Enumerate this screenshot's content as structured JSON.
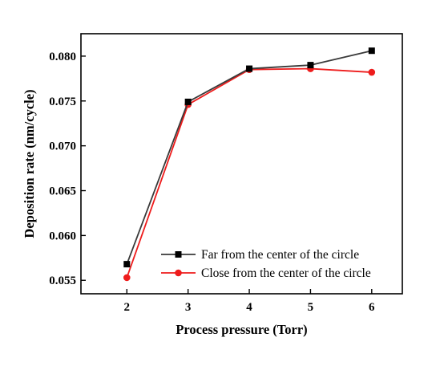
{
  "chart_data": {
    "type": "line",
    "title": "",
    "xlabel": "Process pressure (Torr)",
    "ylabel": "Deposition rate (nm/cycle)",
    "x": [
      2,
      3,
      4,
      5,
      6
    ],
    "xlim": [
      1.25,
      6.5
    ],
    "ylim": [
      0.0535,
      0.0825
    ],
    "xticks": [
      2,
      3,
      4,
      5,
      6
    ],
    "yticks": [
      0.055,
      0.06,
      0.065,
      0.07,
      0.075,
      0.08
    ],
    "ytick_labels": [
      "0.055",
      "0.060",
      "0.065",
      "0.070",
      "0.075",
      "0.080"
    ],
    "grid": false,
    "legend_position": "bottom-right",
    "series": [
      {
        "name": "Far from the center of the circle",
        "color": "#3a3a3a",
        "marker": "square",
        "values": [
          0.0568,
          0.0749,
          0.0786,
          0.079,
          0.0806
        ]
      },
      {
        "name": "Close from the center of the circle",
        "color": "#ee1c1c",
        "marker": "circle",
        "values": [
          0.0553,
          0.0746,
          0.0785,
          0.0786,
          0.0782
        ]
      }
    ]
  }
}
